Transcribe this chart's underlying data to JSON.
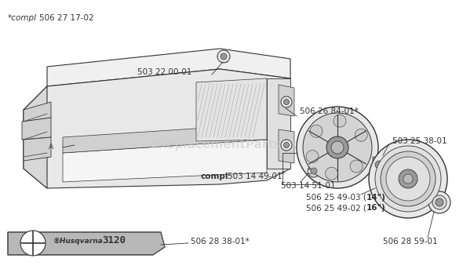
{
  "bg_color": "#ffffff",
  "line_color": "#333333",
  "part_fill": "#e8e8e8",
  "part_fill2": "#d0d0d0",
  "dark_fill": "#999999",
  "logo_fill": "#b8b8b8",
  "watermark": "eReplacementParts.com",
  "labels": {
    "top_compl": "*compl 506 27 17-02",
    "l1": "503 22 00-01",
    "l2": "506 26 84-01*",
    "l3": "503 25 38-01",
    "l4_bold": "compl",
    "l4": "503 14 49-01",
    "l5": "503 14 51-01",
    "l6a": "506 25 49-03 (",
    "l6a_bold": "14\")",
    "l6b": "506 25 49-02 (",
    "l6b_bold": "16\")",
    "l7": "506 28 38-01*",
    "l8": "506 28 59-01"
  }
}
